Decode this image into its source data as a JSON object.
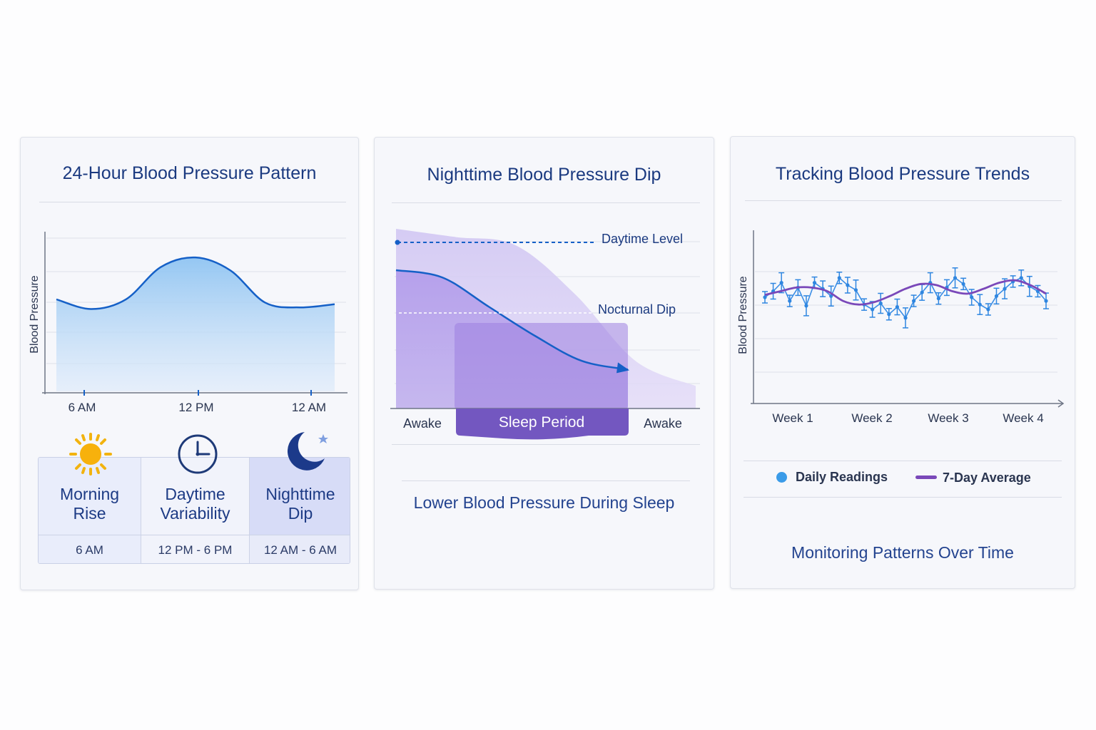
{
  "colors": {
    "blue_line": "#1560c7",
    "blue_fill": "#8fc4f2",
    "purple": "#7b58c7",
    "purple_fill": "#b9a5ea",
    "dark_blue": "#1b3a80"
  },
  "panel1": {
    "title": "24-Hour Blood Pressure Pattern",
    "ylabel": "Blood Pressure",
    "cards": [
      {
        "name_line1": "Morning",
        "name_line2": "Rise",
        "time": "6 AM",
        "icon": "sun-icon"
      },
      {
        "name_line1": "Daytime",
        "name_line2": "Variability",
        "time": "12 PM - 6 PM",
        "icon": "clock-icon"
      },
      {
        "name_line1": "Nighttime",
        "name_line2": "Dip",
        "time": "12 AM - 6 AM",
        "icon": "moon-icon"
      }
    ]
  },
  "panel2": {
    "title": "Nighttime Blood Pressure Dip",
    "daytime_label": "Daytime Level",
    "nocturnal_label": "Nocturnal Dip",
    "awake_left": "Awake",
    "sleep_label": "Sleep Period",
    "awake_right": "Awake",
    "caption": "Lower Blood Pressure During Sleep"
  },
  "panel3": {
    "title": "Tracking Blood Pressure Trends",
    "ylabel": "Blood Pressure",
    "legend_daily": "Daily Readings",
    "legend_avg": "7-Day Average",
    "caption": "Monitoring Patterns Over Time"
  },
  "chart_data": [
    {
      "type": "area",
      "title": "24-Hour Blood Pressure Pattern",
      "ylabel": "Blood Pressure",
      "xlabel": "",
      "x_tick_labels": [
        "6 AM",
        "12 PM",
        "12 AM"
      ],
      "series": [
        {
          "values": [
            0.58,
            0.52,
            0.58,
            0.78,
            0.84,
            0.76,
            0.56,
            0.53,
            0.55
          ]
        }
      ],
      "grid": true
    },
    {
      "type": "area",
      "title": "Nighttime Blood Pressure Dip",
      "x_tick_labels": [
        "Awake",
        "Sleep Period",
        "Awake"
      ],
      "annotations": [
        "Daytime Level",
        "Nocturnal Dip"
      ],
      "series": [
        {
          "values": [
            1.0,
            0.95,
            0.9,
            0.6,
            0.2,
            0.05
          ]
        },
        {
          "values": [
            0.8,
            0.75,
            0.55,
            0.35,
            0.18,
            0.12
          ]
        }
      ],
      "grid": true
    },
    {
      "type": "line",
      "title": "Tracking Blood Pressure Trends",
      "ylabel": "Blood Pressure",
      "x_tick_labels": [
        "Week 1",
        "Week 2",
        "Week 3",
        "Week 4"
      ],
      "series": [
        {
          "name": "Daily Readings",
          "values": [
            0.5,
            0.55,
            0.62,
            0.47,
            0.58,
            0.43,
            0.62,
            0.57,
            0.51,
            0.66,
            0.6,
            0.56,
            0.44,
            0.4,
            0.45,
            0.36,
            0.42,
            0.33,
            0.47,
            0.54,
            0.62,
            0.49,
            0.58,
            0.66,
            0.61,
            0.5,
            0.44,
            0.4,
            0.51,
            0.57,
            0.63,
            0.66,
            0.59,
            0.55,
            0.47
          ]
        },
        {
          "name": "7-Day Average",
          "values": [
            0.52,
            0.55,
            0.58,
            0.58,
            0.55,
            0.47,
            0.44,
            0.46,
            0.51,
            0.57,
            0.61,
            0.6,
            0.55,
            0.53,
            0.57,
            0.62,
            0.64,
            0.6,
            0.53
          ]
        }
      ],
      "grid": true,
      "legend": "bottom"
    }
  ]
}
